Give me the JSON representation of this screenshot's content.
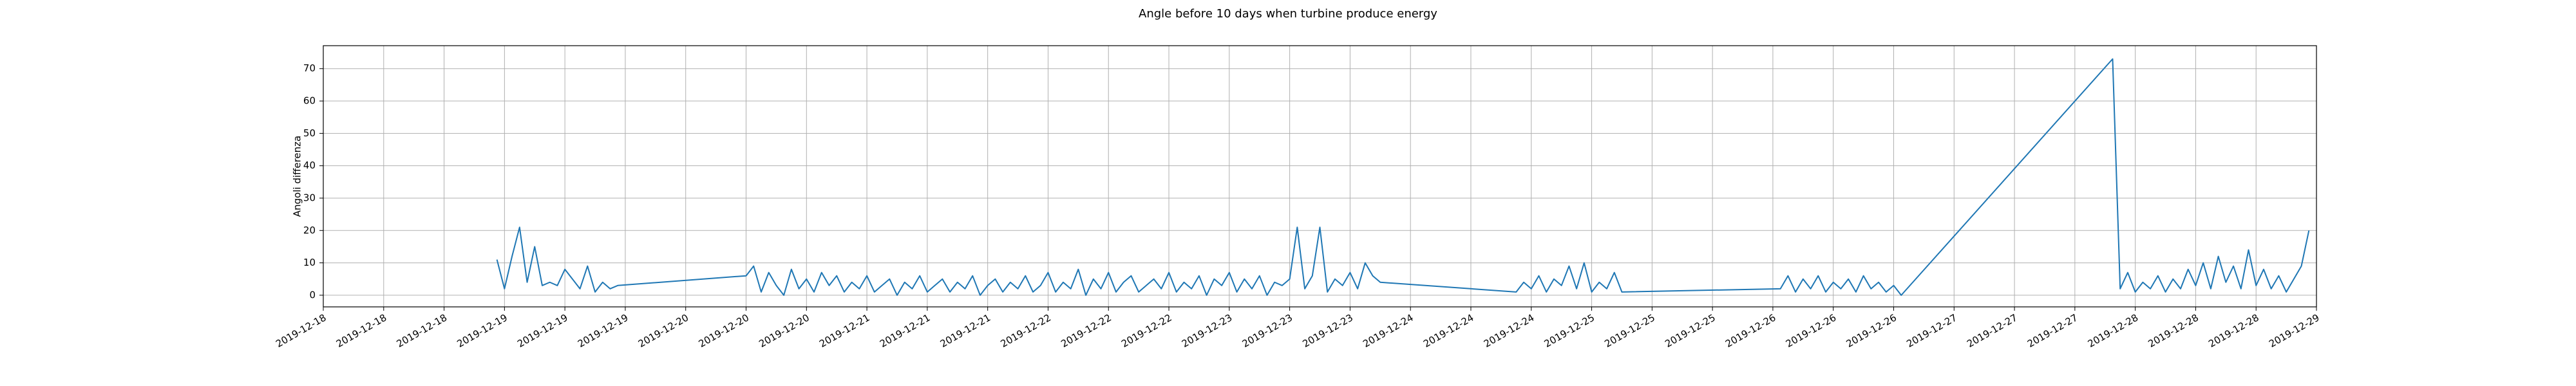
{
  "chart_data": {
    "type": "line",
    "title": "Angle before 10 days when turbine produce energy",
    "y_label": "Angoli differenza",
    "color": "#1f77b4",
    "grid": true,
    "xlim": [
      "2019-12-18 00:00",
      "2019-12-29 00:00"
    ],
    "ylim": [
      -3.6,
      77.1
    ],
    "yticks": [
      0,
      10,
      20,
      30,
      40,
      50,
      60,
      70
    ],
    "xticks": [
      {
        "value": "2019-12-18 00:00",
        "label": "2019-12-18"
      },
      {
        "value": "2019-12-18 08:00",
        "label": "2019-12-18"
      },
      {
        "value": "2019-12-18 16:00",
        "label": "2019-12-18"
      },
      {
        "value": "2019-12-19 00:00",
        "label": "2019-12-19"
      },
      {
        "value": "2019-12-19 08:00",
        "label": "2019-12-19"
      },
      {
        "value": "2019-12-19 16:00",
        "label": "2019-12-19"
      },
      {
        "value": "2019-12-20 00:00",
        "label": "2019-12-20"
      },
      {
        "value": "2019-12-20 08:00",
        "label": "2019-12-20"
      },
      {
        "value": "2019-12-20 16:00",
        "label": "2019-12-20"
      },
      {
        "value": "2019-12-21 00:00",
        "label": "2019-12-21"
      },
      {
        "value": "2019-12-21 08:00",
        "label": "2019-12-21"
      },
      {
        "value": "2019-12-21 16:00",
        "label": "2019-12-21"
      },
      {
        "value": "2019-12-22 00:00",
        "label": "2019-12-22"
      },
      {
        "value": "2019-12-22 08:00",
        "label": "2019-12-22"
      },
      {
        "value": "2019-12-22 16:00",
        "label": "2019-12-22"
      },
      {
        "value": "2019-12-23 00:00",
        "label": "2019-12-23"
      },
      {
        "value": "2019-12-23 08:00",
        "label": "2019-12-23"
      },
      {
        "value": "2019-12-23 16:00",
        "label": "2019-12-23"
      },
      {
        "value": "2019-12-24 00:00",
        "label": "2019-12-24"
      },
      {
        "value": "2019-12-24 08:00",
        "label": "2019-12-24"
      },
      {
        "value": "2019-12-24 16:00",
        "label": "2019-12-24"
      },
      {
        "value": "2019-12-25 00:00",
        "label": "2019-12-25"
      },
      {
        "value": "2019-12-25 08:00",
        "label": "2019-12-25"
      },
      {
        "value": "2019-12-25 16:00",
        "label": "2019-12-25"
      },
      {
        "value": "2019-12-26 00:00",
        "label": "2019-12-26"
      },
      {
        "value": "2019-12-26 08:00",
        "label": "2019-12-26"
      },
      {
        "value": "2019-12-26 16:00",
        "label": "2019-12-26"
      },
      {
        "value": "2019-12-27 00:00",
        "label": "2019-12-27"
      },
      {
        "value": "2019-12-27 08:00",
        "label": "2019-12-27"
      },
      {
        "value": "2019-12-27 16:00",
        "label": "2019-12-27"
      },
      {
        "value": "2019-12-28 00:00",
        "label": "2019-12-28"
      },
      {
        "value": "2019-12-28 08:00",
        "label": "2019-12-28"
      },
      {
        "value": "2019-12-28 16:00",
        "label": "2019-12-28"
      },
      {
        "value": "2019-12-29 00:00",
        "label": "2019-12-29"
      }
    ],
    "x": [
      "2019-12-18 23:00",
      "2019-12-19 00:00",
      "2019-12-19 01:00",
      "2019-12-19 02:00",
      "2019-12-19 03:00",
      "2019-12-19 04:00",
      "2019-12-19 05:00",
      "2019-12-19 06:00",
      "2019-12-19 07:00",
      "2019-12-19 08:00",
      "2019-12-19 09:00",
      "2019-12-19 10:00",
      "2019-12-19 11:00",
      "2019-12-19 12:00",
      "2019-12-19 13:00",
      "2019-12-19 14:00",
      "2019-12-19 15:00",
      "2019-12-20 08:00",
      "2019-12-20 09:00",
      "2019-12-20 10:00",
      "2019-12-20 11:00",
      "2019-12-20 12:00",
      "2019-12-20 13:00",
      "2019-12-20 14:00",
      "2019-12-20 15:00",
      "2019-12-20 16:00",
      "2019-12-20 17:00",
      "2019-12-20 18:00",
      "2019-12-20 19:00",
      "2019-12-20 20:00",
      "2019-12-20 21:00",
      "2019-12-20 22:00",
      "2019-12-20 23:00",
      "2019-12-21 00:00",
      "2019-12-21 01:00",
      "2019-12-21 02:00",
      "2019-12-21 03:00",
      "2019-12-21 04:00",
      "2019-12-21 05:00",
      "2019-12-21 06:00",
      "2019-12-21 07:00",
      "2019-12-21 08:00",
      "2019-12-21 09:00",
      "2019-12-21 10:00",
      "2019-12-21 11:00",
      "2019-12-21 12:00",
      "2019-12-21 13:00",
      "2019-12-21 14:00",
      "2019-12-21 15:00",
      "2019-12-21 16:00",
      "2019-12-21 17:00",
      "2019-12-21 18:00",
      "2019-12-21 19:00",
      "2019-12-21 20:00",
      "2019-12-21 21:00",
      "2019-12-21 22:00",
      "2019-12-21 23:00",
      "2019-12-22 00:00",
      "2019-12-22 01:00",
      "2019-12-22 02:00",
      "2019-12-22 03:00",
      "2019-12-22 04:00",
      "2019-12-22 05:00",
      "2019-12-22 06:00",
      "2019-12-22 07:00",
      "2019-12-22 08:00",
      "2019-12-22 09:00",
      "2019-12-22 10:00",
      "2019-12-22 11:00",
      "2019-12-22 12:00",
      "2019-12-22 13:00",
      "2019-12-22 14:00",
      "2019-12-22 15:00",
      "2019-12-22 16:00",
      "2019-12-22 17:00",
      "2019-12-22 18:00",
      "2019-12-22 19:00",
      "2019-12-22 20:00",
      "2019-12-22 21:00",
      "2019-12-22 22:00",
      "2019-12-22 23:00",
      "2019-12-23 00:00",
      "2019-12-23 01:00",
      "2019-12-23 02:00",
      "2019-12-23 03:00",
      "2019-12-23 04:00",
      "2019-12-23 05:00",
      "2019-12-23 06:00",
      "2019-12-23 07:00",
      "2019-12-23 08:00",
      "2019-12-23 09:00",
      "2019-12-23 10:00",
      "2019-12-23 11:00",
      "2019-12-23 12:00",
      "2019-12-23 13:00",
      "2019-12-23 14:00",
      "2019-12-23 15:00",
      "2019-12-23 16:00",
      "2019-12-23 17:00",
      "2019-12-23 18:00",
      "2019-12-23 19:00",
      "2019-12-23 20:00",
      "2019-12-24 14:00",
      "2019-12-24 15:00",
      "2019-12-24 16:00",
      "2019-12-24 17:00",
      "2019-12-24 18:00",
      "2019-12-24 19:00",
      "2019-12-24 20:00",
      "2019-12-24 21:00",
      "2019-12-24 22:00",
      "2019-12-24 23:00",
      "2019-12-25 00:00",
      "2019-12-25 01:00",
      "2019-12-25 02:00",
      "2019-12-25 03:00",
      "2019-12-25 04:00",
      "2019-12-26 01:00",
      "2019-12-26 02:00",
      "2019-12-26 03:00",
      "2019-12-26 04:00",
      "2019-12-26 05:00",
      "2019-12-26 06:00",
      "2019-12-26 07:00",
      "2019-12-26 08:00",
      "2019-12-26 09:00",
      "2019-12-26 10:00",
      "2019-12-26 11:00",
      "2019-12-26 12:00",
      "2019-12-26 13:00",
      "2019-12-26 14:00",
      "2019-12-26 15:00",
      "2019-12-26 16:00",
      "2019-12-26 17:00",
      "2019-12-27 21:00",
      "2019-12-27 22:00",
      "2019-12-27 23:00",
      "2019-12-28 00:00",
      "2019-12-28 01:00",
      "2019-12-28 02:00",
      "2019-12-28 03:00",
      "2019-12-28 04:00",
      "2019-12-28 05:00",
      "2019-12-28 06:00",
      "2019-12-28 07:00",
      "2019-12-28 08:00",
      "2019-12-28 09:00",
      "2019-12-28 10:00",
      "2019-12-28 11:00",
      "2019-12-28 12:00",
      "2019-12-28 13:00",
      "2019-12-28 14:00",
      "2019-12-28 15:00",
      "2019-12-28 16:00",
      "2019-12-28 17:00",
      "2019-12-28 18:00",
      "2019-12-28 19:00",
      "2019-12-28 20:00",
      "2019-12-28 21:00",
      "2019-12-28 22:00",
      "2019-12-28 23:00"
    ],
    "values": [
      11,
      2,
      12,
      21,
      4,
      15,
      3,
      4,
      3,
      8,
      5,
      2,
      9,
      1,
      4,
      2,
      3,
      6,
      9,
      1,
      7,
      3,
      0,
      8,
      2,
      5,
      1,
      7,
      3,
      6,
      1,
      4,
      2,
      6,
      1,
      3,
      5,
      0,
      4,
      2,
      6,
      1,
      3,
      5,
      1,
      4,
      2,
      6,
      0,
      3,
      5,
      1,
      4,
      2,
      6,
      1,
      3,
      7,
      1,
      4,
      2,
      8,
      0,
      5,
      2,
      7,
      1,
      4,
      6,
      1,
      3,
      5,
      2,
      7,
      1,
      4,
      2,
      6,
      0,
      5,
      3,
      7,
      1,
      5,
      2,
      6,
      0,
      4,
      3,
      5,
      21,
      2,
      6,
      21,
      1,
      5,
      3,
      7,
      2,
      10,
      6,
      4,
      1,
      4,
      2,
      6,
      1,
      5,
      3,
      9,
      2,
      10,
      1,
      4,
      2,
      7,
      1,
      2,
      6,
      1,
      5,
      2,
      6,
      1,
      4,
      2,
      5,
      1,
      6,
      2,
      4,
      1,
      3,
      0,
      73,
      2,
      7,
      1,
      4,
      2,
      6,
      1,
      5,
      2,
      8,
      3,
      10,
      2,
      12,
      4,
      9,
      2,
      14,
      3,
      8,
      2,
      6,
      1,
      5,
      9,
      20
    ]
  }
}
